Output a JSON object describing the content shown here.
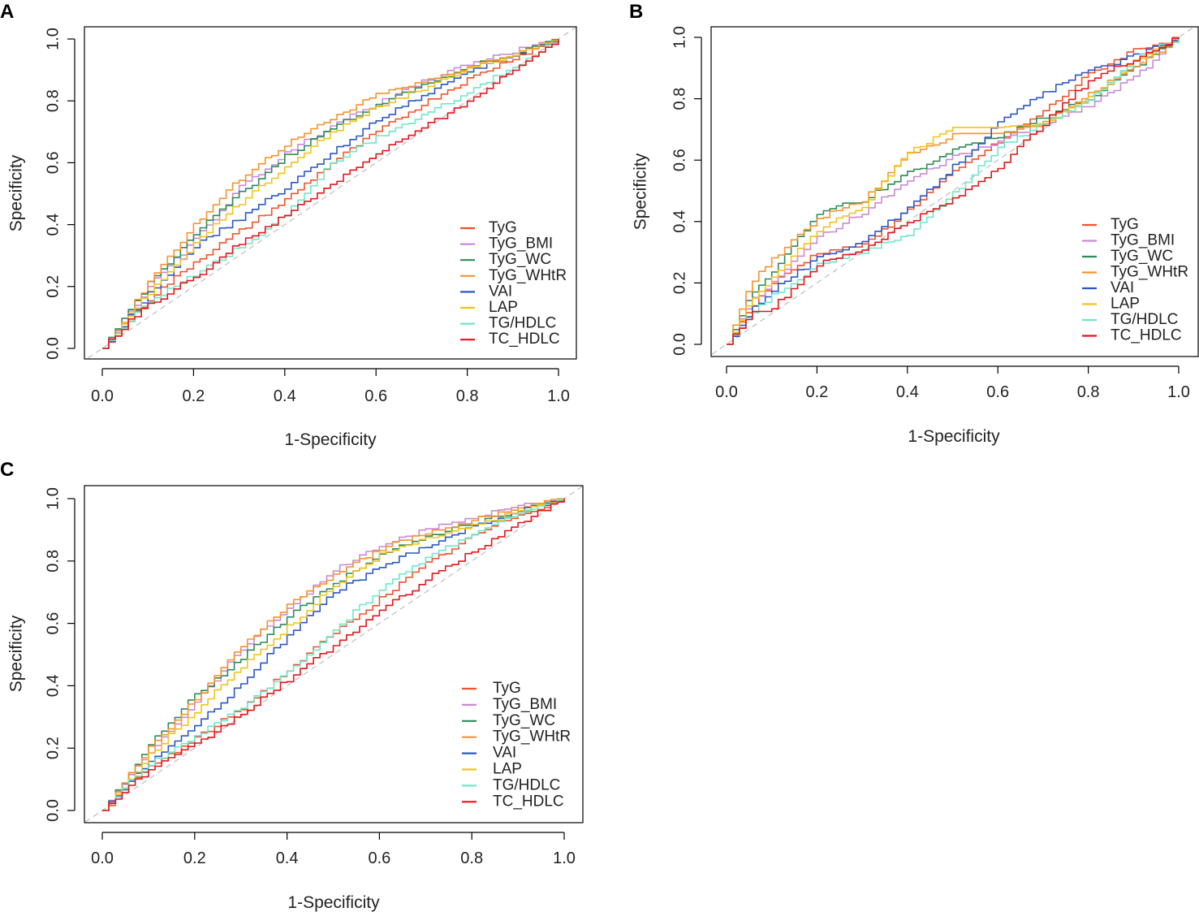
{
  "colors": {
    "TyG": "#f0522b",
    "TyG_BMI": "#c88ad6",
    "TyG_WC": "#2e8b57",
    "TyG_WHtR": "#f7922e",
    "VAI": "#2c56c6",
    "LAP": "#f2c21b",
    "TG/HDLC": "#6fe6c9",
    "TC_HDLC": "#e5141b",
    "diagonal": "#bdbdbd"
  },
  "chart_data": [
    {
      "panel": "A",
      "type": "line",
      "title": "",
      "xlabel": "1-Specificity",
      "ylabel": "Specificity",
      "xlim": [
        0,
        1
      ],
      "ylim": [
        0,
        1
      ],
      "xticks": [
        "0.0",
        "0.2",
        "0.4",
        "0.6",
        "0.8",
        "1.0"
      ],
      "yticks": [
        "0.0",
        "0.2",
        "0.4",
        "0.6",
        "0.8",
        "1.0"
      ],
      "legend_position": "bottom-right",
      "legend": [
        "TyG",
        "TyG_BMI",
        "TyG_WC",
        "TyG_WHtR",
        "VAI",
        "LAP",
        "TG/HDLC",
        "TC_HDLC"
      ],
      "series": [
        {
          "name": "TyG",
          "x": [
            0,
            0.05,
            0.1,
            0.2,
            0.3,
            0.4,
            0.5,
            0.6,
            0.7,
            0.8,
            0.9,
            1
          ],
          "y": [
            0,
            0.08,
            0.16,
            0.28,
            0.38,
            0.48,
            0.6,
            0.7,
            0.79,
            0.87,
            0.94,
            1
          ]
        },
        {
          "name": "TyG_BMI",
          "x": [
            0,
            0.05,
            0.1,
            0.2,
            0.3,
            0.4,
            0.5,
            0.6,
            0.7,
            0.8,
            0.9,
            1
          ],
          "y": [
            0,
            0.1,
            0.2,
            0.35,
            0.52,
            0.63,
            0.72,
            0.79,
            0.86,
            0.92,
            0.96,
            1
          ]
        },
        {
          "name": "TyG_WC",
          "x": [
            0,
            0.05,
            0.1,
            0.2,
            0.3,
            0.4,
            0.5,
            0.6,
            0.7,
            0.8,
            0.9,
            1
          ],
          "y": [
            0,
            0.11,
            0.21,
            0.37,
            0.5,
            0.62,
            0.71,
            0.79,
            0.85,
            0.91,
            0.95,
            1
          ]
        },
        {
          "name": "TyG_WHtR",
          "x": [
            0,
            0.05,
            0.1,
            0.2,
            0.3,
            0.4,
            0.5,
            0.6,
            0.7,
            0.8,
            0.9,
            1
          ],
          "y": [
            0,
            0.1,
            0.22,
            0.4,
            0.55,
            0.66,
            0.74,
            0.82,
            0.86,
            0.91,
            0.95,
            1
          ]
        },
        {
          "name": "VAI",
          "x": [
            0,
            0.05,
            0.1,
            0.2,
            0.3,
            0.4,
            0.5,
            0.6,
            0.7,
            0.8,
            0.9,
            1
          ],
          "y": [
            0,
            0.09,
            0.18,
            0.33,
            0.42,
            0.52,
            0.63,
            0.74,
            0.82,
            0.89,
            0.95,
            1
          ]
        },
        {
          "name": "LAP",
          "x": [
            0,
            0.05,
            0.1,
            0.2,
            0.3,
            0.4,
            0.5,
            0.6,
            0.7,
            0.8,
            0.9,
            1
          ],
          "y": [
            0,
            0.09,
            0.18,
            0.34,
            0.47,
            0.59,
            0.7,
            0.78,
            0.84,
            0.9,
            0.95,
            1
          ]
        },
        {
          "name": "TG/HDLC",
          "x": [
            0,
            0.05,
            0.1,
            0.2,
            0.3,
            0.4,
            0.5,
            0.6,
            0.7,
            0.8,
            0.9,
            1
          ],
          "y": [
            0,
            0.08,
            0.15,
            0.24,
            0.33,
            0.43,
            0.6,
            0.68,
            0.75,
            0.83,
            0.91,
            1
          ]
        },
        {
          "name": "TC_HDLC",
          "x": [
            0,
            0.05,
            0.1,
            0.2,
            0.3,
            0.4,
            0.5,
            0.6,
            0.7,
            0.8,
            0.9,
            1
          ],
          "y": [
            0,
            0.08,
            0.14,
            0.23,
            0.34,
            0.43,
            0.53,
            0.63,
            0.71,
            0.8,
            0.9,
            1
          ]
        }
      ]
    },
    {
      "panel": "B",
      "type": "line",
      "title": "",
      "xlabel": "1-Specificity",
      "ylabel": "Specificity",
      "xlim": [
        0,
        1
      ],
      "ylim": [
        0,
        1
      ],
      "xticks": [
        "0.0",
        "0.2",
        "0.4",
        "0.6",
        "0.8",
        "1.0"
      ],
      "yticks": [
        "0.0",
        "0.2",
        "0.4",
        "0.6",
        "0.8",
        "1.0"
      ],
      "legend_position": "bottom-right",
      "legend": [
        "TyG",
        "TyG_BMI",
        "TyG_WC",
        "TyG_WHtR",
        "VAI",
        "LAP",
        "TG/HDLC",
        "TC_HDLC"
      ],
      "series": [
        {
          "name": "TyG",
          "x": [
            0,
            0.05,
            0.1,
            0.2,
            0.3,
            0.4,
            0.5,
            0.6,
            0.7,
            0.8,
            0.9,
            1
          ],
          "y": [
            0,
            0.12,
            0.2,
            0.3,
            0.32,
            0.44,
            0.56,
            0.66,
            0.76,
            0.88,
            0.96,
            1
          ]
        },
        {
          "name": "TyG_BMI",
          "x": [
            0,
            0.05,
            0.1,
            0.2,
            0.3,
            0.4,
            0.5,
            0.6,
            0.7,
            0.8,
            0.9,
            1
          ],
          "y": [
            0,
            0.14,
            0.2,
            0.35,
            0.43,
            0.53,
            0.61,
            0.66,
            0.72,
            0.78,
            0.87,
            1
          ]
        },
        {
          "name": "TyG_WC",
          "x": [
            0,
            0.05,
            0.1,
            0.2,
            0.3,
            0.4,
            0.5,
            0.6,
            0.7,
            0.8,
            0.9,
            1
          ],
          "y": [
            0,
            0.16,
            0.24,
            0.43,
            0.47,
            0.56,
            0.63,
            0.68,
            0.74,
            0.8,
            0.9,
            1
          ]
        },
        {
          "name": "TyG_WHtR",
          "x": [
            0,
            0.05,
            0.1,
            0.2,
            0.3,
            0.4,
            0.5,
            0.6,
            0.7,
            0.8,
            0.9,
            1
          ],
          "y": [
            0,
            0.2,
            0.28,
            0.41,
            0.47,
            0.62,
            0.68,
            0.68,
            0.72,
            0.82,
            0.9,
            1
          ]
        },
        {
          "name": "VAI",
          "x": [
            0,
            0.05,
            0.1,
            0.2,
            0.3,
            0.4,
            0.5,
            0.6,
            0.7,
            0.8,
            0.9,
            1
          ],
          "y": [
            0,
            0.11,
            0.18,
            0.28,
            0.34,
            0.44,
            0.58,
            0.72,
            0.82,
            0.89,
            0.94,
            1
          ]
        },
        {
          "name": "LAP",
          "x": [
            0,
            0.05,
            0.1,
            0.2,
            0.3,
            0.4,
            0.5,
            0.6,
            0.7,
            0.8,
            0.9,
            1
          ],
          "y": [
            0,
            0.14,
            0.22,
            0.37,
            0.45,
            0.63,
            0.7,
            0.7,
            0.72,
            0.8,
            0.92,
            1
          ]
        },
        {
          "name": "TG/HDLC",
          "x": [
            0,
            0.05,
            0.1,
            0.2,
            0.3,
            0.4,
            0.5,
            0.6,
            0.7,
            0.8,
            0.9,
            1
          ],
          "y": [
            0,
            0.1,
            0.16,
            0.26,
            0.3,
            0.36,
            0.49,
            0.64,
            0.72,
            0.8,
            0.93,
            1
          ]
        },
        {
          "name": "TC_HDLC",
          "x": [
            0,
            0.05,
            0.1,
            0.2,
            0.3,
            0.4,
            0.5,
            0.6,
            0.7,
            0.8,
            0.9,
            1
          ],
          "y": [
            0,
            0.1,
            0.12,
            0.26,
            0.31,
            0.4,
            0.47,
            0.58,
            0.72,
            0.86,
            0.93,
            1
          ]
        }
      ]
    },
    {
      "panel": "C",
      "type": "line",
      "title": "",
      "xlabel": "1-Specificity",
      "ylabel": "Specificity",
      "xlim": [
        0,
        1
      ],
      "ylim": [
        0,
        1
      ],
      "xticks": [
        "0.0",
        "0.2",
        "0.4",
        "0.6",
        "0.8",
        "1.0"
      ],
      "yticks": [
        "0.0",
        "0.2",
        "0.4",
        "0.6",
        "0.8",
        "1.0"
      ],
      "legend_position": "bottom-right",
      "legend": [
        "TyG",
        "TyG_BMI",
        "TyG_WC",
        "TyG_WHtR",
        "VAI",
        "LAP",
        "TG/HDLC",
        "TC_HDLC"
      ],
      "series": [
        {
          "name": "TyG",
          "x": [
            0,
            0.05,
            0.1,
            0.2,
            0.3,
            0.4,
            0.5,
            0.6,
            0.7,
            0.8,
            0.9,
            1
          ],
          "y": [
            0,
            0.08,
            0.14,
            0.23,
            0.33,
            0.45,
            0.57,
            0.68,
            0.79,
            0.88,
            0.95,
            1
          ]
        },
        {
          "name": "TyG_BMI",
          "x": [
            0,
            0.05,
            0.1,
            0.2,
            0.3,
            0.4,
            0.5,
            0.6,
            0.7,
            0.8,
            0.9,
            1
          ],
          "y": [
            0,
            0.1,
            0.19,
            0.35,
            0.52,
            0.65,
            0.77,
            0.85,
            0.9,
            0.94,
            0.98,
            1
          ]
        },
        {
          "name": "TyG_WC",
          "x": [
            0,
            0.05,
            0.1,
            0.2,
            0.3,
            0.4,
            0.5,
            0.6,
            0.7,
            0.8,
            0.9,
            1
          ],
          "y": [
            0,
            0.11,
            0.21,
            0.37,
            0.49,
            0.62,
            0.73,
            0.82,
            0.88,
            0.92,
            0.96,
            1
          ]
        },
        {
          "name": "TyG_WHtR",
          "x": [
            0,
            0.05,
            0.1,
            0.2,
            0.3,
            0.4,
            0.5,
            0.6,
            0.7,
            0.8,
            0.9,
            1
          ],
          "y": [
            0,
            0.1,
            0.2,
            0.36,
            0.53,
            0.66,
            0.76,
            0.84,
            0.89,
            0.93,
            0.97,
            1
          ]
        },
        {
          "name": "VAI",
          "x": [
            0,
            0.05,
            0.1,
            0.2,
            0.3,
            0.4,
            0.5,
            0.6,
            0.7,
            0.8,
            0.9,
            1
          ],
          "y": [
            0,
            0.08,
            0.16,
            0.27,
            0.41,
            0.56,
            0.7,
            0.78,
            0.85,
            0.91,
            0.96,
            1
          ]
        },
        {
          "name": "LAP",
          "x": [
            0,
            0.05,
            0.1,
            0.2,
            0.3,
            0.4,
            0.5,
            0.6,
            0.7,
            0.8,
            0.9,
            1
          ],
          "y": [
            0,
            0.09,
            0.18,
            0.32,
            0.46,
            0.59,
            0.72,
            0.82,
            0.87,
            0.91,
            0.96,
            1
          ]
        },
        {
          "name": "TG/HDLC",
          "x": [
            0,
            0.05,
            0.1,
            0.2,
            0.3,
            0.4,
            0.5,
            0.6,
            0.7,
            0.8,
            0.9,
            1
          ],
          "y": [
            0,
            0.08,
            0.15,
            0.24,
            0.33,
            0.44,
            0.58,
            0.71,
            0.81,
            0.89,
            0.95,
            1
          ]
        },
        {
          "name": "TC_HDLC",
          "x": [
            0,
            0.05,
            0.1,
            0.2,
            0.3,
            0.4,
            0.5,
            0.6,
            0.7,
            0.8,
            0.9,
            1
          ],
          "y": [
            0,
            0.07,
            0.13,
            0.21,
            0.31,
            0.42,
            0.53,
            0.64,
            0.74,
            0.83,
            0.92,
            1
          ]
        }
      ]
    }
  ]
}
